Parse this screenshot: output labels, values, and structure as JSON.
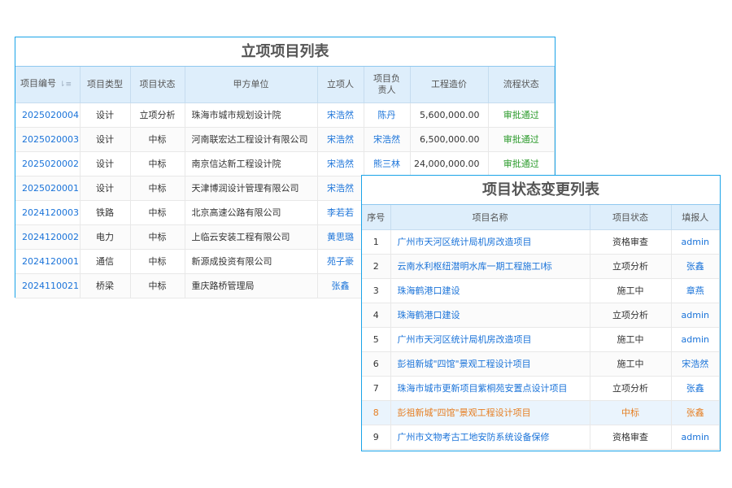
{
  "project_list": {
    "title": "立项项目列表",
    "headers": [
      "项目编号",
      "项目类型",
      "项目状态",
      "甲方单位",
      "立项人",
      "项目负责人",
      "工程造价",
      "流程状态"
    ],
    "sort_icon": "sort-icon",
    "rows": [
      {
        "id": "2025020004",
        "type": "设计",
        "status": "立项分析",
        "client": "珠海市城市规划设计院",
        "creator": "宋浩然",
        "manager": "陈丹",
        "cost": "5,600,000.00",
        "flow": "审批通过"
      },
      {
        "id": "2025020003",
        "type": "设计",
        "status": "中标",
        "client": "河南联宏达工程设计有限公司",
        "creator": "宋浩然",
        "manager": "宋浩然",
        "cost": "6,500,000.00",
        "flow": "审批通过"
      },
      {
        "id": "2025020002",
        "type": "设计",
        "status": "中标",
        "client": "南京信达新工程设计院",
        "creator": "宋浩然",
        "manager": "熊三林",
        "cost": "24,000,000.00",
        "flow": "审批通过"
      },
      {
        "id": "2025020001",
        "type": "设计",
        "status": "中标",
        "client": "天津博润设计管理有限公司",
        "creator": "宋浩然",
        "manager": "",
        "cost": "",
        "flow": ""
      },
      {
        "id": "2024120003",
        "type": "铁路",
        "status": "中标",
        "client": "北京高速公路有限公司",
        "creator": "李若若",
        "manager": "",
        "cost": "",
        "flow": ""
      },
      {
        "id": "2024120002",
        "type": "电力",
        "status": "中标",
        "client": "上临云安装工程有限公司",
        "creator": "黄思璐",
        "manager": "",
        "cost": "",
        "flow": ""
      },
      {
        "id": "2024120001",
        "type": "通信",
        "status": "中标",
        "client": "新源成投资有限公司",
        "creator": "苑子豪",
        "manager": "",
        "cost": "",
        "flow": ""
      },
      {
        "id": "2024110021",
        "type": "桥梁",
        "status": "中标",
        "client": "重庆路桥管理局",
        "creator": "张鑫",
        "manager": "",
        "cost": "",
        "flow": ""
      }
    ]
  },
  "status_changes": {
    "title": "项目状态变更列表",
    "headers": [
      "序号",
      "项目名称",
      "项目状态",
      "填报人"
    ],
    "highlight_color": "#e67e22",
    "rows": [
      {
        "no": "1",
        "name": "广州市天河区统计局机房改造项目",
        "status": "资格审查",
        "reporter": "admin"
      },
      {
        "no": "2",
        "name": "云南水利枢纽潜明水库一期工程施工I标",
        "status": "立项分析",
        "reporter": "张鑫"
      },
      {
        "no": "3",
        "name": "珠海鹤港口建设",
        "status": "施工中",
        "reporter": "章燕"
      },
      {
        "no": "4",
        "name": "珠海鹤港口建设",
        "status": "立项分析",
        "reporter": "admin"
      },
      {
        "no": "5",
        "name": "广州市天河区统计局机房改造项目",
        "status": "施工中",
        "reporter": "admin"
      },
      {
        "no": "6",
        "name": "彭祖新城\"四馆\"景观工程设计项目",
        "status": "施工中",
        "reporter": "宋浩然"
      },
      {
        "no": "7",
        "name": "珠海市城市更新项目紫桐苑安置点设计项目",
        "status": "立项分析",
        "reporter": "张鑫"
      },
      {
        "no": "8",
        "name": "彭祖新城\"四馆\"景观工程设计项目",
        "status": "中标",
        "reporter": "张鑫",
        "highlighted": true
      },
      {
        "no": "9",
        "name": "广州市文物考古工地安防系统设备保修",
        "status": "资格审查",
        "reporter": "admin"
      }
    ]
  }
}
